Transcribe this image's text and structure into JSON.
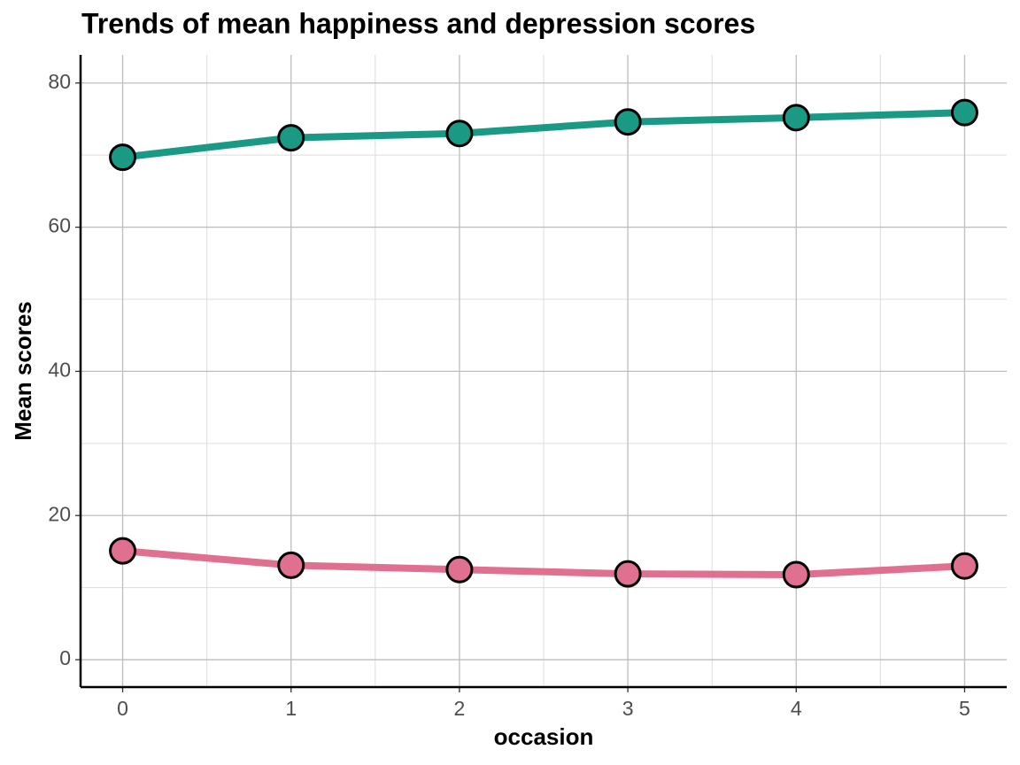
{
  "chart_data": {
    "type": "line",
    "title": "Trends of mean happiness and depression scores",
    "x_label": "occasion",
    "y_label": "Mean scores",
    "x": [
      0,
      1,
      2,
      3,
      4,
      5
    ],
    "series": [
      {
        "color": "#1a9985",
        "values": [
          69.7,
          72.4,
          73.0,
          74.6,
          75.2,
          75.9
        ]
      },
      {
        "color": "#e07090",
        "values": [
          15.1,
          13.1,
          12.5,
          11.9,
          11.8,
          13.0
        ]
      }
    ],
    "xlim": [
      -0.25,
      5.25
    ],
    "ylim": [
      -3.8,
      83.9
    ],
    "xticks": [
      0,
      1,
      2,
      3,
      4,
      5
    ],
    "yticks": [
      0,
      20,
      40,
      60,
      80
    ],
    "grid": true,
    "minor_grid": true
  }
}
